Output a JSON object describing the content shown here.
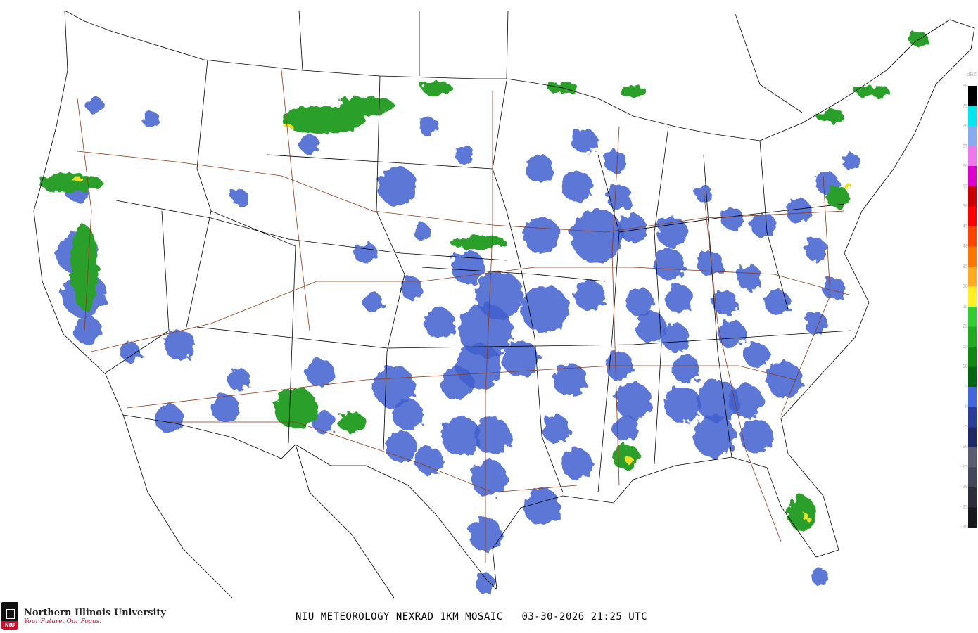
{
  "product": {
    "title": "NIU METEOROLOGY NEXRAD 1KM MOSAIC",
    "date": "03-30-2026",
    "time": "21:25 UTC"
  },
  "branding": {
    "university": "Northern Illinois University",
    "tagline": "Your Future. Our Focus.",
    "shield_text": "NIU"
  },
  "legend": {
    "unit": "dBZ",
    "ticks": [
      "80",
      "75",
      "70",
      "65",
      "60",
      "55",
      "50",
      "45",
      "40",
      "35",
      "30",
      "25",
      "20",
      "15",
      "10",
      "5",
      "0",
      "-5",
      "-10",
      "-15",
      "-20",
      "-25",
      "-30"
    ],
    "colors": [
      "#000000",
      "#00e5ee",
      "#88aaee",
      "#ee77ee",
      "#dd00cc",
      "#cc0000",
      "#ff0000",
      "#ff4400",
      "#ff7700",
      "#ffaa22",
      "#ffee22",
      "#33cc33",
      "#22aa22",
      "#118811",
      "#006611",
      "#4466dd",
      "#2a3d99",
      "#1e2a66",
      "#5a5c72",
      "#44465a",
      "#2c2d38",
      "#18181f"
    ]
  },
  "colors": {
    "echo_light": "#3f5fcf",
    "echo_mid": "#2aa02a",
    "echo_heavy": "#eedd22",
    "border": "#000000",
    "highway": "#8b3a1a"
  }
}
